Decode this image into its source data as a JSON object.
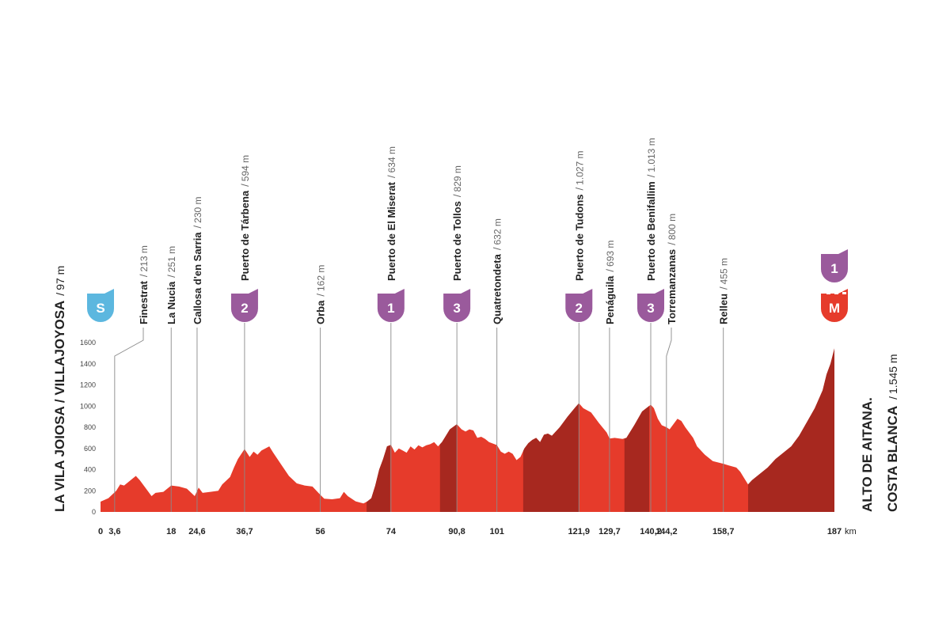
{
  "chart_data": {
    "type": "area",
    "color": "#e63b2b",
    "highlight_color": "#a7281f",
    "badge_color": "#9a5a9c",
    "start_badge_color": "#5cb7df",
    "finish_badge_color": "#e63b2b",
    "separator": "/",
    "x_unit": "km",
    "xlim": [
      0,
      187
    ],
    "ylim": [
      0,
      1600
    ],
    "yticks": [
      0,
      200,
      400,
      600,
      800,
      1000,
      1200,
      1400,
      1600
    ],
    "xticks": [
      0,
      {
        "value": 3.6,
        "label": "3,6"
      },
      18,
      {
        "value": 24.6,
        "label": "24,6"
      },
      {
        "value": 36.7,
        "label": "36,7"
      },
      56,
      74,
      {
        "value": 90.8,
        "label": "90,8"
      },
      101,
      {
        "value": 121.9,
        "label": "121,9"
      },
      {
        "value": 129.7,
        "label": "129,7"
      },
      {
        "value": 140.2,
        "label": "140,2"
      },
      {
        "value": 144.2,
        "label": "144,2"
      },
      {
        "value": 158.7,
        "label": "158,7"
      },
      187
    ],
    "start": {
      "name": "LA VILA JOIOSA / VILLAJOYOSA",
      "elevation": "97 m",
      "badge": "S"
    },
    "finish": {
      "name": [
        "ALTO DE AITANA.",
        "COSTA BLANCA"
      ],
      "elevation": "1.545 m",
      "badges": [
        "1",
        "M"
      ]
    },
    "waypoints": [
      {
        "name": "Finestrat",
        "elevation": "213 m"
      },
      {
        "name": "La Nucia",
        "elevation": "251 m"
      },
      {
        "name": "Callosa d'en Sarria",
        "elevation": "230 m"
      },
      {
        "name": "Puerto de Tárbena",
        "elevation": "594 m",
        "category": "2"
      },
      {
        "name": "Orba",
        "elevation": "162 m"
      },
      {
        "name": "Puerto de El Miserat",
        "elevation": "634 m",
        "category": "1"
      },
      {
        "name": "Puerto de Tollos",
        "elevation": "829 m",
        "category": "3"
      },
      {
        "name": "Quatretondeta",
        "elevation": "632 m"
      },
      {
        "name": "Puerto de Tudons",
        "elevation": "1.027 m",
        "category": "2"
      },
      {
        "name": "Penáguila",
        "elevation": "693 m"
      },
      {
        "name": "Puerto de Benifallim",
        "elevation": "1.013 m",
        "category": "3"
      },
      {
        "name": "Torremanzanas",
        "elevation": "800 m"
      },
      {
        "name": "Relleu",
        "elevation": "455 m"
      }
    ],
    "highlights": [
      {
        "from": 67.8,
        "to": 73.8
      },
      {
        "from": 86.5,
        "to": 90.8
      },
      {
        "from": 107.7,
        "to": 121.9
      },
      {
        "from": 133.5,
        "to": 139.8
      },
      {
        "from": 165,
        "to": 187
      }
    ],
    "x": [
      0,
      2,
      4,
      5,
      6,
      8,
      9,
      10,
      12,
      13,
      14,
      16,
      18,
      20,
      22,
      24,
      25,
      26,
      28,
      30,
      31,
      33,
      34,
      35,
      36.7,
      38,
      39,
      40,
      41,
      43,
      44,
      46,
      48,
      50,
      52,
      54,
      56,
      57,
      59,
      61,
      62,
      63,
      65,
      67,
      68,
      69,
      70,
      71,
      72,
      73,
      74,
      75,
      76,
      77,
      78,
      79,
      80,
      81,
      82,
      83,
      84,
      85,
      86,
      87,
      88,
      89,
      90.8,
      92,
      93,
      94,
      95,
      96,
      97,
      98,
      99,
      101,
      102,
      103,
      104,
      105,
      106,
      107,
      108,
      109,
      110,
      111,
      112,
      113,
      114,
      115,
      117,
      119,
      121,
      121.9,
      123,
      125,
      127,
      129,
      129.7,
      131,
      133,
      134,
      136,
      138,
      140.2,
      141,
      142,
      143,
      144.2,
      145,
      147,
      148,
      149,
      151,
      152,
      154,
      156,
      158.7,
      160,
      162,
      163,
      164,
      165,
      166,
      168,
      170,
      172,
      174,
      176,
      178,
      180,
      182,
      184,
      185,
      186,
      187
    ],
    "values": [
      97,
      130,
      200,
      260,
      250,
      310,
      340,
      300,
      200,
      150,
      180,
      190,
      250,
      240,
      220,
      150,
      230,
      180,
      190,
      200,
      260,
      330,
      420,
      500,
      594,
      520,
      570,
      540,
      580,
      620,
      560,
      450,
      340,
      270,
      250,
      240,
      162,
      125,
      120,
      130,
      190,
      150,
      100,
      80,
      100,
      130,
      250,
      400,
      500,
      620,
      634,
      560,
      600,
      580,
      560,
      620,
      590,
      630,
      610,
      630,
      640,
      660,
      620,
      660,
      720,
      780,
      829,
      780,
      760,
      780,
      770,
      700,
      710,
      690,
      660,
      632,
      570,
      550,
      570,
      550,
      490,
      520,
      600,
      650,
      680,
      700,
      660,
      730,
      740,
      720,
      800,
      900,
      990,
      1027,
      980,
      940,
      840,
      750,
      693,
      700,
      690,
      700,
      820,
      950,
      1013,
      980,
      880,
      820,
      800,
      780,
      880,
      860,
      800,
      700,
      620,
      540,
      480,
      455,
      440,
      420,
      380,
      320,
      260,
      300,
      360,
      420,
      500,
      560,
      620,
      720,
      850,
      980,
      1150,
      1300,
      1400,
      1545
    ]
  }
}
